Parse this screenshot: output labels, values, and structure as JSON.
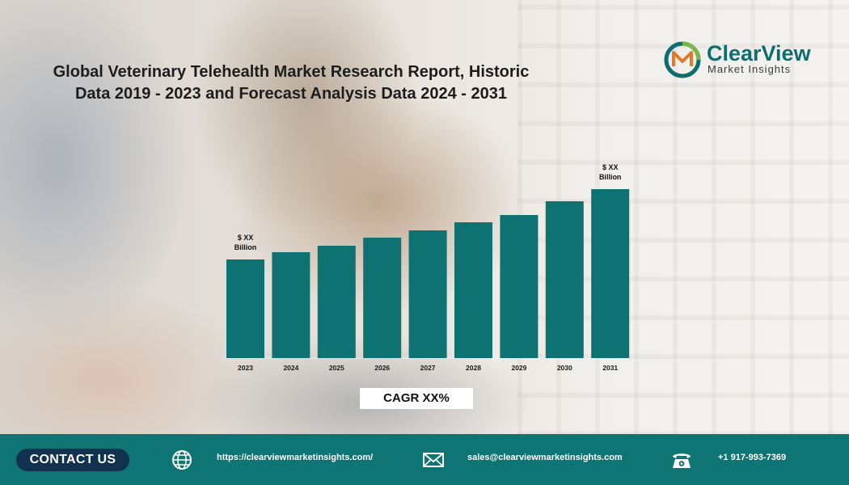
{
  "title": {
    "line1": "Global Veterinary Telehealth Market Research Report, Historic",
    "line2": "Data 2019 - 2023 and Forecast Analysis Data 2024 - 2031"
  },
  "logo": {
    "name": "ClearView",
    "tagline": "Market Insights"
  },
  "chart_data": {
    "type": "bar",
    "title": "Global Veterinary Telehealth Market Research Report, Historic Data 2019 - 2023 and Forecast Analysis Data 2024 - 2031",
    "xlabel": "",
    "ylabel": "",
    "categories": [
      "2023",
      "2024",
      "2025",
      "2026",
      "2027",
      "2028",
      "2029",
      "2030",
      "2031"
    ],
    "values": [
      122,
      131,
      139,
      149,
      158,
      168,
      177,
      194,
      209
    ],
    "ylim": [
      0,
      220
    ],
    "annotations": [
      {
        "category": "2023",
        "line1": "$ XX",
        "line2": "Billion"
      },
      {
        "category": "2031",
        "line1": "$ XX",
        "line2": "Billion"
      }
    ],
    "bar_color": "#0e7172",
    "grid": false
  },
  "cagr_label": "CAGR XX%",
  "footer": {
    "contact_label": "CONTACT US",
    "website": "https://clearviewmarketinsights.com/",
    "email": "sales@clearviewmarketinsights.com",
    "phone": "+1 917-993-7369",
    "icons": [
      "globe-icon",
      "mail-icon",
      "phone-icon"
    ]
  },
  "colors": {
    "teal": "#0f7474",
    "navy": "#10324f",
    "bar": "#0e7172"
  }
}
